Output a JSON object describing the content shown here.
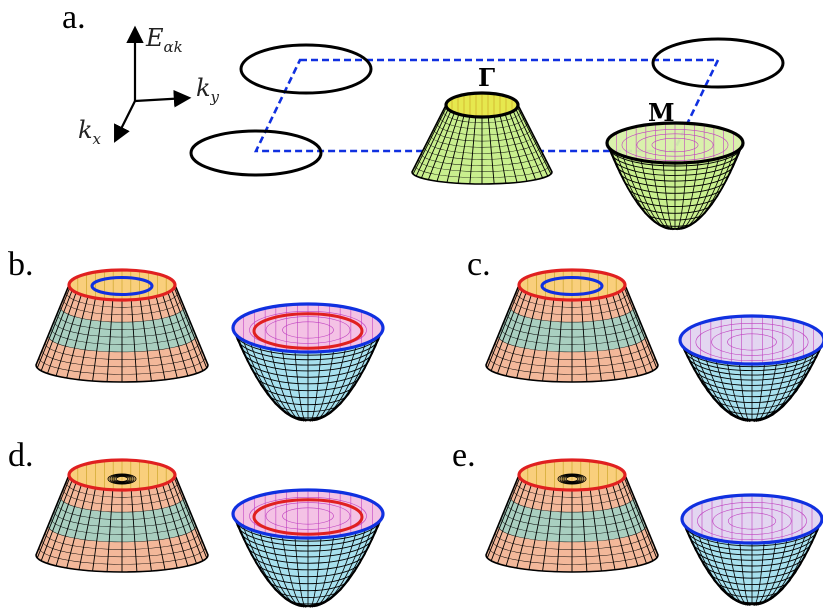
{
  "panel_labels": {
    "a": "a.",
    "b": "b.",
    "c": "c.",
    "d": "d.",
    "e": "e."
  },
  "axes": {
    "energy": "E",
    "energy_sub": "αk",
    "ky": "k",
    "ky_sub": "y",
    "kx": "k",
    "kx_sub": "x"
  },
  "points": {
    "gamma": "Γ",
    "m": "M"
  },
  "colors": {
    "green": "#c9ef8e",
    "green_top": "#e6e84e",
    "salmon": "#f3b89a",
    "teal": "#a9cfc0",
    "orange_top": "#f9cf7c",
    "cyan": "#a7e0ee",
    "pink": "#f3bfe4",
    "red": "#e02020",
    "blue": "#1030e0",
    "bz": "#1030e0",
    "pink_grid": "#c040c0"
  }
}
